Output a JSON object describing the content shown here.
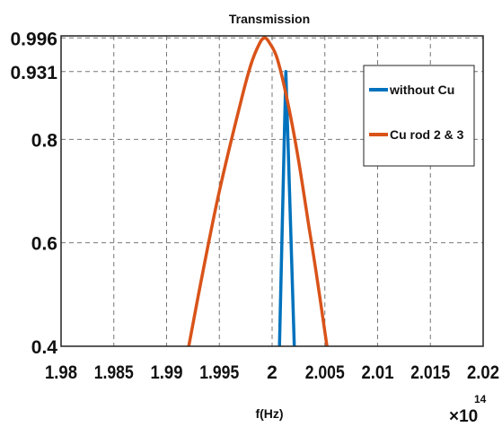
{
  "chart_data": {
    "type": "line",
    "title": "Transmission",
    "xlabel": "f(Hz)",
    "ylabel": "",
    "x_exponent_label": "×10",
    "x_exponent_power": "14",
    "xlim": [
      1.98,
      2.02
    ],
    "ylim": [
      0.4,
      1.0
    ],
    "x_ticks": [
      1.98,
      1.985,
      1.99,
      1.995,
      2.0,
      2.005,
      2.01,
      2.015,
      2.02
    ],
    "x_tick_labels": [
      "1.98",
      "1.985",
      "1.99",
      "1.995",
      "2",
      "2.005",
      "2.01",
      "2.015",
      "2.02"
    ],
    "y_ticks": [
      0.4,
      0.6,
      0.8,
      0.931,
      0.996
    ],
    "y_tick_labels": [
      "0.4",
      "0.6",
      "0.8",
      "0.931",
      "0.996"
    ],
    "grid": true,
    "legend_position": "top-right",
    "series": [
      {
        "name": "without Cu",
        "color": "#0072bd",
        "x": [
          2.0007,
          2.0013,
          2.0021
        ],
        "y": [
          0.4,
          0.931,
          0.4
        ]
      },
      {
        "name": "Cu rod 2 & 3",
        "color": "#d95319",
        "x": [
          1.9921,
          1.9935,
          1.995,
          1.997,
          1.998,
          1.9988,
          1.9993,
          1.9998,
          2.0005,
          2.0015,
          2.0025,
          2.0035,
          2.0042,
          2.0052
        ],
        "y": [
          0.4,
          0.55,
          0.7,
          0.87,
          0.945,
          0.985,
          0.996,
          0.985,
          0.955,
          0.87,
          0.76,
          0.63,
          0.54,
          0.4
        ]
      }
    ]
  }
}
